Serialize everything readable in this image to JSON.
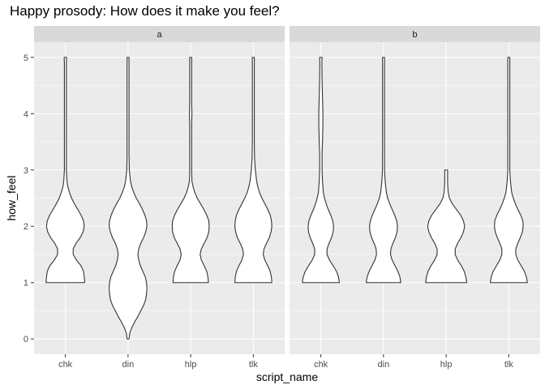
{
  "chart_data": {
    "type": "violin",
    "title": "Happy prosody: How does it make you feel?",
    "xlabel": "script_name",
    "ylabel": "how_feel",
    "ylim": [
      0,
      5
    ],
    "yticks": [
      0,
      1,
      2,
      3,
      4,
      5
    ],
    "categories": [
      "chk",
      "din",
      "hlp",
      "tlk"
    ],
    "grid": true,
    "facets": [
      {
        "label": "a",
        "violins": [
          {
            "category": "chk",
            "ymin": 1,
            "ymax": 5,
            "density": [
              [
                1.0,
                0.47
              ],
              [
                1.1,
                0.46
              ],
              [
                1.2,
                0.44
              ],
              [
                1.3,
                0.38
              ],
              [
                1.4,
                0.27
              ],
              [
                1.5,
                0.19
              ],
              [
                1.6,
                0.19
              ],
              [
                1.7,
                0.26
              ],
              [
                1.8,
                0.36
              ],
              [
                1.9,
                0.43
              ],
              [
                2.0,
                0.46
              ],
              [
                2.1,
                0.44
              ],
              [
                2.2,
                0.38
              ],
              [
                2.3,
                0.3
              ],
              [
                2.4,
                0.22
              ],
              [
                2.5,
                0.15
              ],
              [
                2.6,
                0.1
              ],
              [
                2.7,
                0.06
              ],
              [
                2.8,
                0.04
              ],
              [
                3.0,
                0.02
              ],
              [
                3.3,
                0.01
              ],
              [
                3.6,
                0.006
              ],
              [
                3.8,
                0.012
              ],
              [
                4.0,
                0.02
              ],
              [
                4.2,
                0.012
              ],
              [
                4.5,
                0.006
              ],
              [
                4.9,
                0.02
              ],
              [
                5.0,
                0.03
              ]
            ]
          },
          {
            "category": "din",
            "ymin": 0,
            "ymax": 5,
            "density": [
              [
                0.0,
                0.01
              ],
              [
                0.1,
                0.04
              ],
              [
                0.2,
                0.09
              ],
              [
                0.3,
                0.16
              ],
              [
                0.4,
                0.24
              ],
              [
                0.5,
                0.31
              ],
              [
                0.6,
                0.38
              ],
              [
                0.7,
                0.43
              ],
              [
                0.8,
                0.45
              ],
              [
                0.9,
                0.46
              ],
              [
                1.0,
                0.45
              ],
              [
                1.1,
                0.42
              ],
              [
                1.2,
                0.36
              ],
              [
                1.3,
                0.3
              ],
              [
                1.4,
                0.26
              ],
              [
                1.5,
                0.24
              ],
              [
                1.6,
                0.26
              ],
              [
                1.7,
                0.31
              ],
              [
                1.8,
                0.38
              ],
              [
                1.9,
                0.43
              ],
              [
                2.0,
                0.46
              ],
              [
                2.1,
                0.45
              ],
              [
                2.2,
                0.41
              ],
              [
                2.3,
                0.35
              ],
              [
                2.4,
                0.28
              ],
              [
                2.5,
                0.2
              ],
              [
                2.6,
                0.14
              ],
              [
                2.7,
                0.09
              ],
              [
                2.8,
                0.06
              ],
              [
                3.0,
                0.03
              ],
              [
                3.3,
                0.012
              ],
              [
                3.8,
                0.006
              ],
              [
                4.4,
                0.006
              ],
              [
                4.9,
                0.008
              ],
              [
                5.0,
                0.012
              ]
            ]
          },
          {
            "category": "hlp",
            "ymin": 1,
            "ymax": 5,
            "density": [
              [
                1.0,
                0.43
              ],
              [
                1.1,
                0.42
              ],
              [
                1.2,
                0.39
              ],
              [
                1.3,
                0.33
              ],
              [
                1.4,
                0.26
              ],
              [
                1.5,
                0.23
              ],
              [
                1.6,
                0.26
              ],
              [
                1.7,
                0.33
              ],
              [
                1.8,
                0.4
              ],
              [
                1.9,
                0.44
              ],
              [
                2.0,
                0.45
              ],
              [
                2.1,
                0.44
              ],
              [
                2.2,
                0.39
              ],
              [
                2.3,
                0.32
              ],
              [
                2.4,
                0.24
              ],
              [
                2.5,
                0.16
              ],
              [
                2.6,
                0.1
              ],
              [
                2.7,
                0.06
              ],
              [
                2.8,
                0.03
              ],
              [
                3.0,
                0.015
              ],
              [
                3.4,
                0.008
              ],
              [
                3.8,
                0.02
              ],
              [
                4.0,
                0.03
              ],
              [
                4.2,
                0.02
              ],
              [
                4.5,
                0.008
              ],
              [
                4.9,
                0.015
              ],
              [
                5.0,
                0.025
              ]
            ]
          },
          {
            "category": "tlk",
            "ymin": 1,
            "ymax": 5,
            "density": [
              [
                1.0,
                0.45
              ],
              [
                1.1,
                0.44
              ],
              [
                1.2,
                0.41
              ],
              [
                1.3,
                0.35
              ],
              [
                1.4,
                0.28
              ],
              [
                1.5,
                0.24
              ],
              [
                1.6,
                0.26
              ],
              [
                1.7,
                0.32
              ],
              [
                1.8,
                0.39
              ],
              [
                1.9,
                0.43
              ],
              [
                2.0,
                0.45
              ],
              [
                2.1,
                0.44
              ],
              [
                2.2,
                0.41
              ],
              [
                2.3,
                0.35
              ],
              [
                2.4,
                0.28
              ],
              [
                2.5,
                0.21
              ],
              [
                2.6,
                0.15
              ],
              [
                2.7,
                0.11
              ],
              [
                2.8,
                0.08
              ],
              [
                3.0,
                0.05
              ],
              [
                3.2,
                0.03
              ],
              [
                3.5,
                0.015
              ],
              [
                3.8,
                0.01
              ],
              [
                4.2,
                0.008
              ],
              [
                4.6,
                0.008
              ],
              [
                4.9,
                0.015
              ],
              [
                5.0,
                0.025
              ]
            ]
          }
        ]
      },
      {
        "label": "b",
        "violins": [
          {
            "category": "chk",
            "ymin": 1,
            "ymax": 5,
            "density": [
              [
                1.0,
                0.45
              ],
              [
                1.1,
                0.43
              ],
              [
                1.2,
                0.38
              ],
              [
                1.3,
                0.3
              ],
              [
                1.4,
                0.21
              ],
              [
                1.5,
                0.15
              ],
              [
                1.6,
                0.15
              ],
              [
                1.7,
                0.2
              ],
              [
                1.8,
                0.26
              ],
              [
                1.9,
                0.3
              ],
              [
                2.0,
                0.31
              ],
              [
                2.1,
                0.29
              ],
              [
                2.2,
                0.24
              ],
              [
                2.3,
                0.18
              ],
              [
                2.4,
                0.13
              ],
              [
                2.5,
                0.09
              ],
              [
                2.6,
                0.06
              ],
              [
                2.8,
                0.04
              ],
              [
                3.0,
                0.03
              ],
              [
                3.3,
                0.03
              ],
              [
                3.5,
                0.04
              ],
              [
                3.8,
                0.05
              ],
              [
                4.0,
                0.05
              ],
              [
                4.3,
                0.04
              ],
              [
                4.6,
                0.03
              ],
              [
                4.9,
                0.025
              ],
              [
                5.0,
                0.03
              ]
            ]
          },
          {
            "category": "din",
            "ymin": 1,
            "ymax": 5,
            "density": [
              [
                1.0,
                0.42
              ],
              [
                1.1,
                0.4
              ],
              [
                1.2,
                0.35
              ],
              [
                1.3,
                0.28
              ],
              [
                1.4,
                0.21
              ],
              [
                1.5,
                0.17
              ],
              [
                1.6,
                0.18
              ],
              [
                1.7,
                0.23
              ],
              [
                1.8,
                0.29
              ],
              [
                1.9,
                0.33
              ],
              [
                2.0,
                0.34
              ],
              [
                2.1,
                0.32
              ],
              [
                2.2,
                0.27
              ],
              [
                2.3,
                0.21
              ],
              [
                2.4,
                0.15
              ],
              [
                2.5,
                0.1
              ],
              [
                2.6,
                0.07
              ],
              [
                2.8,
                0.04
              ],
              [
                3.0,
                0.025
              ],
              [
                3.4,
                0.015
              ],
              [
                3.8,
                0.015
              ],
              [
                4.2,
                0.012
              ],
              [
                4.6,
                0.015
              ],
              [
                4.9,
                0.02
              ],
              [
                5.0,
                0.025
              ]
            ]
          },
          {
            "category": "hlp",
            "ymin": 1,
            "ymax": 3,
            "density": [
              [
                1.0,
                0.5
              ],
              [
                1.1,
                0.48
              ],
              [
                1.2,
                0.44
              ],
              [
                1.3,
                0.37
              ],
              [
                1.4,
                0.28
              ],
              [
                1.5,
                0.22
              ],
              [
                1.6,
                0.22
              ],
              [
                1.7,
                0.28
              ],
              [
                1.8,
                0.36
              ],
              [
                1.9,
                0.42
              ],
              [
                2.0,
                0.45
              ],
              [
                2.1,
                0.42
              ],
              [
                2.2,
                0.35
              ],
              [
                2.3,
                0.25
              ],
              [
                2.4,
                0.15
              ],
              [
                2.5,
                0.08
              ],
              [
                2.6,
                0.05
              ],
              [
                2.7,
                0.04
              ],
              [
                2.8,
                0.035
              ],
              [
                2.9,
                0.035
              ],
              [
                3.0,
                0.035
              ]
            ]
          },
          {
            "category": "tlk",
            "ymin": 1,
            "ymax": 5,
            "density": [
              [
                1.0,
                0.45
              ],
              [
                1.1,
                0.43
              ],
              [
                1.2,
                0.38
              ],
              [
                1.3,
                0.3
              ],
              [
                1.4,
                0.22
              ],
              [
                1.5,
                0.17
              ],
              [
                1.6,
                0.17
              ],
              [
                1.7,
                0.22
              ],
              [
                1.8,
                0.28
              ],
              [
                1.9,
                0.33
              ],
              [
                2.0,
                0.35
              ],
              [
                2.1,
                0.34
              ],
              [
                2.2,
                0.29
              ],
              [
                2.3,
                0.22
              ],
              [
                2.4,
                0.16
              ],
              [
                2.5,
                0.11
              ],
              [
                2.6,
                0.07
              ],
              [
                2.8,
                0.04
              ],
              [
                3.0,
                0.02
              ],
              [
                3.4,
                0.01
              ],
              [
                3.8,
                0.008
              ],
              [
                4.2,
                0.008
              ],
              [
                4.6,
                0.008
              ],
              [
                4.9,
                0.015
              ],
              [
                5.0,
                0.02
              ]
            ]
          }
        ]
      }
    ],
    "colors": {
      "panel_bg": "#ebebeb",
      "strip_bg": "#d9d9d9",
      "grid_major": "#ffffff",
      "violin_fill": "#ffffff",
      "violin_stroke": "#333333",
      "axis_text": "#4d4d4d",
      "strip_text": "#1a1a1a"
    }
  }
}
